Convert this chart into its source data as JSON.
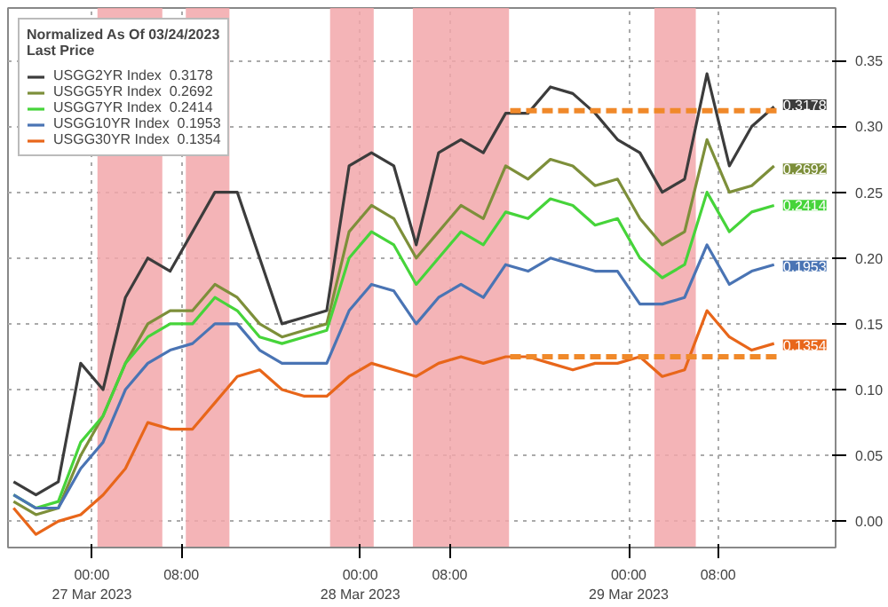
{
  "chart_data": {
    "type": "line",
    "legend_title": "Normalized As Of 03/24/2023\nLast Price",
    "x": [
      "2023-03-26T17:00",
      "2023-03-26T19:00",
      "2023-03-26T21:00",
      "2023-03-26T23:00",
      "2023-03-27T01:00",
      "2023-03-27T03:00",
      "2023-03-27T05:00",
      "2023-03-27T07:00",
      "2023-03-27T09:00",
      "2023-03-27T11:00",
      "2023-03-27T13:00",
      "2023-03-27T15:00",
      "2023-03-27T17:00",
      "2023-03-27T19:00",
      "2023-03-27T21:00",
      "2023-03-27T23:00",
      "2023-03-28T01:00",
      "2023-03-28T03:00",
      "2023-03-28T05:00",
      "2023-03-28T07:00",
      "2023-03-28T09:00",
      "2023-03-28T11:00",
      "2023-03-28T13:00",
      "2023-03-28T15:00",
      "2023-03-28T17:00",
      "2023-03-28T19:00",
      "2023-03-28T21:00",
      "2023-03-28T23:00",
      "2023-03-29T01:00",
      "2023-03-29T03:00",
      "2023-03-29T05:00",
      "2023-03-29T07:00",
      "2023-03-29T09:00",
      "2023-03-29T11:00",
      "2023-03-29T13:00"
    ],
    "series": [
      {
        "name": "USGG2YR Index  0.3178",
        "color": "#3c3c3c",
        "values": [
          0.03,
          0.02,
          0.03,
          0.12,
          0.1,
          0.17,
          0.2,
          0.19,
          0.22,
          0.25,
          0.25,
          0.2,
          0.15,
          0.155,
          0.16,
          0.27,
          0.28,
          0.27,
          0.21,
          0.28,
          0.29,
          0.28,
          0.31,
          0.31,
          0.33,
          0.325,
          0.31,
          0.29,
          0.28,
          0.25,
          0.26,
          0.34,
          0.27,
          0.3,
          0.315
        ]
      },
      {
        "name": "USGG5YR Index  0.2692",
        "color": "#7d8f3a",
        "values": [
          0.015,
          0.005,
          0.01,
          0.05,
          0.08,
          0.12,
          0.15,
          0.16,
          0.16,
          0.18,
          0.17,
          0.15,
          0.14,
          0.145,
          0.15,
          0.22,
          0.24,
          0.23,
          0.2,
          0.22,
          0.24,
          0.23,
          0.27,
          0.26,
          0.275,
          0.27,
          0.255,
          0.26,
          0.23,
          0.21,
          0.22,
          0.29,
          0.25,
          0.255,
          0.27
        ]
      },
      {
        "name": "USGG7YR Index  0.2414",
        "color": "#46d43a",
        "values": [
          0.02,
          0.01,
          0.015,
          0.06,
          0.08,
          0.12,
          0.14,
          0.15,
          0.15,
          0.17,
          0.16,
          0.14,
          0.135,
          0.14,
          0.145,
          0.2,
          0.22,
          0.21,
          0.18,
          0.2,
          0.22,
          0.21,
          0.235,
          0.23,
          0.245,
          0.24,
          0.225,
          0.23,
          0.2,
          0.185,
          0.195,
          0.25,
          0.22,
          0.235,
          0.24
        ]
      },
      {
        "name": "USGG10YR Index  0.1953",
        "color": "#4a74b4",
        "values": [
          0.02,
          0.01,
          0.01,
          0.04,
          0.06,
          0.1,
          0.12,
          0.13,
          0.135,
          0.15,
          0.15,
          0.13,
          0.12,
          0.12,
          0.12,
          0.16,
          0.18,
          0.175,
          0.15,
          0.17,
          0.18,
          0.17,
          0.195,
          0.19,
          0.2,
          0.195,
          0.19,
          0.19,
          0.165,
          0.165,
          0.17,
          0.21,
          0.18,
          0.19,
          0.195
        ]
      },
      {
        "name": "USGG30YR Index  0.1354",
        "color": "#e8661a",
        "values": [
          0.01,
          -0.01,
          0.0,
          0.005,
          0.02,
          0.04,
          0.075,
          0.07,
          0.07,
          0.09,
          0.11,
          0.115,
          0.1,
          0.095,
          0.095,
          0.11,
          0.12,
          0.115,
          0.11,
          0.12,
          0.125,
          0.12,
          0.125,
          0.125,
          0.12,
          0.115,
          0.12,
          0.12,
          0.125,
          0.11,
          0.115,
          0.16,
          0.14,
          0.13,
          0.135
        ]
      },
      {
        "x": [
          "2023-03-28T13:24",
          "2023-03-29T13:30"
        ],
        "color": "#f0892a",
        "line_style": "dashed",
        "values": [
          0.312,
          0.312
        ]
      },
      {
        "x": [
          "2023-03-28T13:24",
          "2023-03-29T13:30"
        ],
        "color": "#f0892a",
        "line_style": "dashed",
        "values": [
          0.125,
          0.125
        ]
      }
    ],
    "bands": [
      {
        "axis": "x",
        "from": "2023-03-27T00:30",
        "to": "2023-03-27T06:18",
        "color": "#f2a7aa"
      },
      {
        "axis": "x",
        "from": "2023-03-27T08:24",
        "to": "2023-03-27T12:18",
        "color": "#f2a7aa"
      },
      {
        "axis": "x",
        "from": "2023-03-27T21:18",
        "to": "2023-03-28T01:12",
        "color": "#f2a7aa"
      },
      {
        "axis": "x",
        "from": "2023-03-28T04:42",
        "to": "2023-03-28T13:18",
        "color": "#f2a7aa"
      },
      {
        "axis": "x",
        "from": "2023-03-29T02:18",
        "to": "2023-03-29T06:00",
        "color": "#f2a7aa"
      }
    ],
    "annotations": [
      {
        "text": "0.3178",
        "x": "2023-03-29T13:00",
        "y": 0.3178
      },
      {
        "text": "0.2692",
        "x": "2023-03-29T13:00",
        "y": 0.2692
      },
      {
        "text": "0.2414",
        "x": "2023-03-29T13:00",
        "y": 0.2414
      },
      {
        "text": "0.1953",
        "x": "2023-03-29T13:00",
        "y": 0.1953
      },
      {
        "text": "0.1354",
        "x": "2023-03-29T13:00",
        "y": 0.1354
      }
    ],
    "xlim": [
      "2023-03-26T16:30",
      "2023-03-29T18:30"
    ],
    "xticks": [
      {
        "value": "2023-03-27T00:00",
        "label": "00:00\n27 Mar 2023"
      },
      {
        "value": "2023-03-27T08:00",
        "label": "08:00"
      },
      {
        "value": "2023-03-28T00:00",
        "label": "00:00\n28 Mar 2023"
      },
      {
        "value": "2023-03-28T08:00",
        "label": "08:00"
      },
      {
        "value": "2023-03-29T00:00",
        "label": "00:00\n29 Mar 2023"
      },
      {
        "value": "2023-03-29T08:00",
        "label": "08:00"
      }
    ],
    "ylim": [
      -0.02,
      0.39
    ],
    "yticks": [
      {
        "value": 0,
        "label": "0.00"
      },
      {
        "value": 0.05,
        "label": "0.05"
      },
      {
        "value": 0.1,
        "label": "0.10"
      },
      {
        "value": 0.15,
        "label": "0.15"
      },
      {
        "value": 0.2,
        "label": "0.20"
      },
      {
        "value": 0.25,
        "label": "0.25"
      },
      {
        "value": 0.3,
        "label": "0.30"
      },
      {
        "value": 0.35,
        "label": "0.35"
      }
    ],
    "grid": true,
    "legend": "top left",
    "marker": "none",
    "line_style": "solid"
  }
}
